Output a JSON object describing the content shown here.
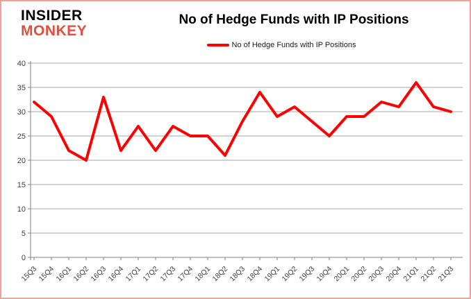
{
  "branding": {
    "logo_line1": "INSIDER",
    "logo_line2": "MONKEY",
    "logo_color_primary": "#000000",
    "logo_color_secondary": "#e0503f"
  },
  "header": {
    "title": "No of Hedge Funds with IP Positions"
  },
  "legend": {
    "label": "No of Hedge Funds with IP Positions",
    "line_color": "#ff0000"
  },
  "chart_data": {
    "type": "line",
    "title": "No of Hedge Funds with IP Positions",
    "categories": [
      "15Q3",
      "15Q4",
      "16Q1",
      "16Q2",
      "16Q3",
      "16Q4",
      "17Q1",
      "17Q2",
      "17Q3",
      "17Q4",
      "18Q1",
      "18Q2",
      "18Q3",
      "18Q4",
      "19Q1",
      "19Q2",
      "19Q3",
      "19Q4",
      "20Q1",
      "20Q2",
      "20Q3",
      "20Q4",
      "21Q1",
      "21Q2",
      "21Q3"
    ],
    "series": [
      {
        "name": "No of Hedge Funds with IP Positions",
        "color": "#ff0000",
        "values": [
          32,
          29,
          22,
          20,
          33,
          22,
          27,
          22,
          27,
          25,
          25,
          21,
          28,
          34,
          29,
          31,
          28,
          25,
          29,
          29,
          32,
          31,
          36,
          31,
          30
        ]
      }
    ],
    "xlabel": "",
    "ylabel": "",
    "ylim": [
      0,
      40
    ],
    "y_ticks": [
      40,
      35,
      30,
      25,
      20,
      15,
      10,
      5,
      0
    ],
    "grid": true,
    "legend_position": "top",
    "gridline_color": "#a6a6a6",
    "axis_color": "#808080",
    "tick_label_color": "#404040"
  }
}
